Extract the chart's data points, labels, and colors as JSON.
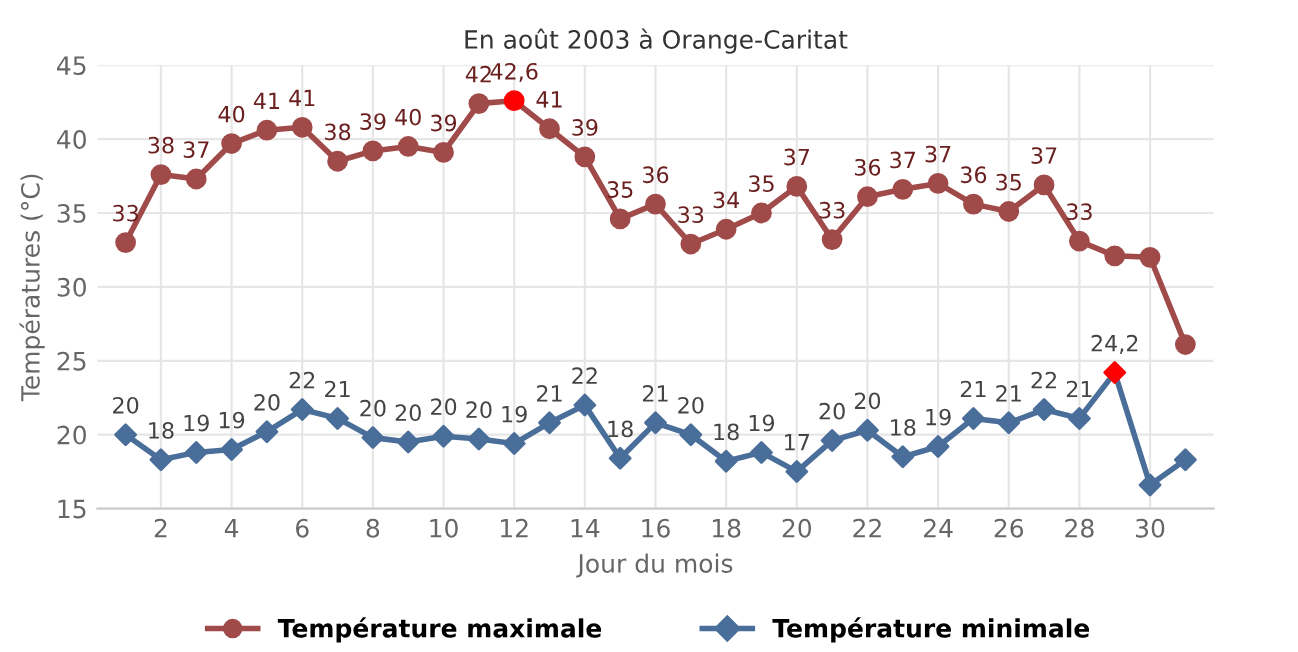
{
  "chart_data": {
    "type": "line",
    "title": "En août 2003 à Orange-Caritat",
    "xlabel": "Jour du mois",
    "ylabel": "Températures (°C)",
    "x": [
      1,
      2,
      3,
      4,
      5,
      6,
      7,
      8,
      9,
      10,
      11,
      12,
      13,
      14,
      15,
      16,
      17,
      18,
      19,
      20,
      21,
      22,
      23,
      24,
      25,
      26,
      27,
      28,
      29,
      30,
      31
    ],
    "series": [
      {
        "name": "Température maximale",
        "color": "#a04a4a",
        "marker": "circle",
        "colors": [
          "#a04a4a",
          "#a04a4a",
          "#a04a4a",
          "#a04a4a",
          "#a04a4a",
          "#a04a4a",
          "#a04a4a",
          "#a04a4a",
          "#a04a4a",
          "#a04a4a",
          "#a04a4a",
          "#ff0000",
          "#a04a4a",
          "#a04a4a",
          "#a04a4a",
          "#a04a4a",
          "#a04a4a",
          "#a04a4a",
          "#a04a4a",
          "#a04a4a",
          "#a04a4a",
          "#a04a4a",
          "#a04a4a",
          "#a04a4a",
          "#a04a4a",
          "#a04a4a",
          "#a04a4a",
          "#a04a4a",
          "#a04a4a",
          "#a04a4a",
          "#a04a4a"
        ],
        "values": [
          33.0,
          37.6,
          37.3,
          39.7,
          40.6,
          40.8,
          38.5,
          39.2,
          39.5,
          39.1,
          42.4,
          42.6,
          40.7,
          38.8,
          34.6,
          35.6,
          32.9,
          33.9,
          35.0,
          36.8,
          33.2,
          36.1,
          36.6,
          37.0,
          35.6,
          35.1,
          36.9,
          33.1,
          32.1,
          32.0,
          26.1
        ],
        "value_labels": [
          "33",
          "38",
          "37",
          "40",
          "41",
          "41",
          "38",
          "39",
          "40",
          "39",
          "42",
          "42,6",
          "41",
          "39",
          "35",
          "36",
          "33",
          "34",
          "35",
          "37",
          "33",
          "36",
          "37",
          "37",
          "36",
          "35",
          "37",
          "33",
          null,
          null,
          null
        ]
      },
      {
        "name": "Température minimale",
        "color": "#4a6e9a",
        "marker": "diamond",
        "colors": [
          "#4a6e9a",
          "#4a6e9a",
          "#4a6e9a",
          "#4a6e9a",
          "#4a6e9a",
          "#4a6e9a",
          "#4a6e9a",
          "#4a6e9a",
          "#4a6e9a",
          "#4a6e9a",
          "#4a6e9a",
          "#4a6e9a",
          "#4a6e9a",
          "#4a6e9a",
          "#4a6e9a",
          "#4a6e9a",
          "#4a6e9a",
          "#4a6e9a",
          "#4a6e9a",
          "#4a6e9a",
          "#4a6e9a",
          "#4a6e9a",
          "#4a6e9a",
          "#4a6e9a",
          "#4a6e9a",
          "#4a6e9a",
          "#4a6e9a",
          "#4a6e9a",
          "#ff0000",
          "#4a6e9a",
          "#4a6e9a"
        ],
        "values": [
          20.0,
          18.3,
          18.8,
          19.0,
          20.2,
          21.7,
          21.1,
          19.8,
          19.5,
          19.9,
          19.7,
          19.4,
          20.8,
          22.0,
          18.4,
          20.8,
          20.0,
          18.2,
          18.8,
          17.5,
          19.6,
          20.3,
          18.5,
          19.2,
          21.1,
          20.8,
          21.7,
          21.1,
          24.2,
          16.6,
          18.3
        ],
        "value_labels": [
          "20",
          "18",
          "19",
          "19",
          "20",
          "22",
          "21",
          "20",
          "20",
          "20",
          "20",
          "19",
          "21",
          "22",
          "18",
          "21",
          "20",
          "18",
          "19",
          "17",
          "20",
          "20",
          "18",
          "19",
          "21",
          "21",
          "22",
          "21",
          "24,2",
          null,
          null
        ]
      }
    ],
    "xlim": [
      0.2,
      31.8
    ],
    "xticks": [
      2,
      4,
      6,
      8,
      10,
      12,
      14,
      16,
      18,
      20,
      22,
      24,
      26,
      28,
      30
    ],
    "ylim": [
      15,
      45
    ],
    "yticks": [
      15,
      20,
      25,
      30,
      35,
      40,
      45
    ],
    "grid": true,
    "legend": "bottom",
    "line_style": "solid"
  }
}
